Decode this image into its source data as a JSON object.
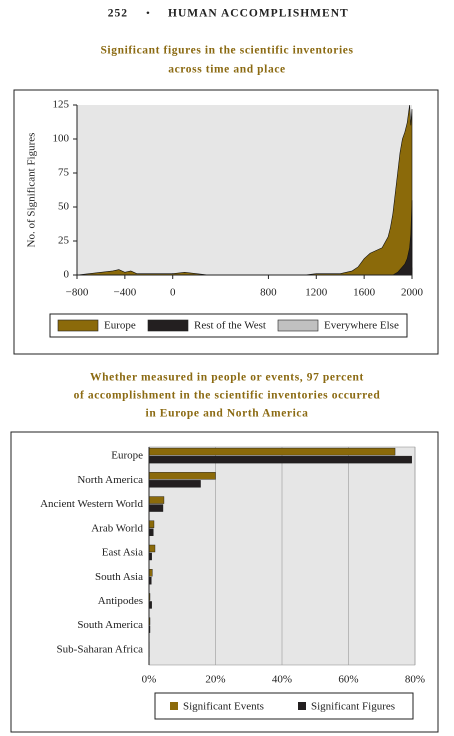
{
  "header": {
    "page_number": "252",
    "running_title": "HUMAN ACCOMPLISHMENT"
  },
  "chart_data": [
    {
      "type": "area",
      "title": [
        "Significant figures in the scientific inventories",
        "across time and place"
      ],
      "y_label": "No. of Significant Figures",
      "x": [
        -800,
        -700,
        -600,
        -500,
        -450,
        -400,
        -350,
        -300,
        -200,
        -100,
        0,
        100,
        200,
        300,
        400,
        500,
        600,
        700,
        800,
        900,
        1000,
        1100,
        1200,
        1300,
        1400,
        1450,
        1500,
        1550,
        1600,
        1650,
        1700,
        1750,
        1800,
        1820,
        1840,
        1860,
        1880,
        1900,
        1920,
        1940,
        1960,
        1980,
        1990,
        2000
      ],
      "series": [
        {
          "name": "Everywhere Else",
          "color": "#c0c0c0",
          "values": [
            0,
            0,
            0,
            1,
            0,
            1,
            0,
            0,
            0,
            0,
            1,
            0,
            0,
            0,
            0,
            0,
            0,
            0,
            0,
            0,
            0,
            0,
            0,
            0,
            0,
            0,
            0,
            1,
            1,
            1,
            1,
            1,
            1,
            1,
            1,
            1,
            2,
            2,
            2,
            2,
            3,
            4,
            4,
            5
          ]
        },
        {
          "name": "Europe",
          "color": "#8b6a0a",
          "values": [
            0,
            1,
            2,
            3,
            4,
            2,
            3,
            1,
            1,
            1,
            1,
            2,
            1,
            0,
            0,
            0,
            0,
            0,
            0,
            0,
            0,
            0,
            1,
            1,
            1,
            2,
            3,
            6,
            12,
            16,
            18,
            20,
            28,
            35,
            45,
            60,
            75,
            90,
            100,
            105,
            112,
            125,
            110,
            122
          ]
        },
        {
          "name": "Rest of the West",
          "color": "#231f20",
          "values": [
            0,
            0,
            0,
            0,
            0,
            0,
            0,
            0,
            0,
            0,
            0,
            0,
            0,
            0,
            0,
            0,
            0,
            0,
            0,
            0,
            0,
            0,
            0,
            0,
            0,
            0,
            0,
            0,
            0,
            0,
            0,
            0,
            0,
            0,
            0,
            1,
            2,
            4,
            6,
            8,
            12,
            20,
            30,
            55
          ]
        }
      ],
      "legend_order": [
        1,
        2,
        0
      ],
      "xlim": [
        -800,
        2000
      ],
      "xticks": [
        {
          "value": -800,
          "label": "−800"
        },
        {
          "value": -400,
          "label": "−400"
        },
        0,
        800,
        1200,
        1600,
        2000
      ],
      "ylim": [
        0,
        125
      ],
      "yticks": [
        0,
        25,
        50,
        75,
        100,
        125
      ]
    },
    {
      "type": "hbar",
      "title": [
        "Whether measured in people or events, 97 percent",
        "of accomplishment in the scientific inventories occurred",
        "in Europe and North America"
      ],
      "categories": [
        "Europe",
        "North America",
        "Ancient Western World",
        "Arab World",
        "East Asia",
        "South Asia",
        "Antipodes",
        "South America",
        "Sub-Saharan Africa"
      ],
      "series": [
        {
          "name": "Significant Events",
          "color": "#8b6a0a",
          "values": [
            74,
            20,
            4.5,
            1.5,
            1.8,
            1,
            0.3,
            0.3,
            0.1
          ]
        },
        {
          "name": "Significant Figures",
          "color": "#231f20",
          "values": [
            79,
            15.5,
            4.2,
            1.3,
            0.8,
            0.7,
            0.8,
            0.3,
            0.1
          ]
        }
      ],
      "xlim": [
        0,
        80
      ],
      "xticks": [
        {
          "value": 0,
          "label": "0%"
        },
        {
          "value": 20,
          "label": "20%"
        },
        {
          "value": 40,
          "label": "40%"
        },
        {
          "value": 60,
          "label": "60%"
        },
        {
          "value": 80,
          "label": "80%"
        }
      ],
      "grid": true
    }
  ]
}
